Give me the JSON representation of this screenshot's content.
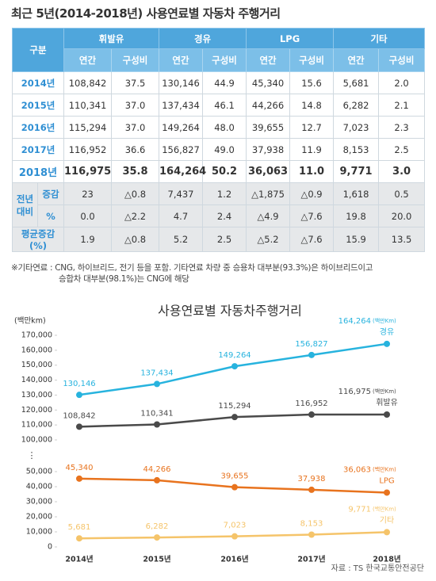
{
  "table": {
    "title": "최근 5년(2014-2018년) 사용연료별 자동차 주행거리",
    "corner": "구분",
    "groups": [
      "휘발유",
      "경유",
      "LPG",
      "기타"
    ],
    "sub": [
      "연간",
      "구성비"
    ],
    "rows": [
      {
        "label": "2014년",
        "cells": [
          "108,842",
          "37.5",
          "130,146",
          "44.9",
          "45,340",
          "15.6",
          "5,681",
          "2.0"
        ]
      },
      {
        "label": "2015년",
        "cells": [
          "110,341",
          "37.0",
          "137,434",
          "46.1",
          "44,266",
          "14.8",
          "6,282",
          "2.1"
        ]
      },
      {
        "label": "2016년",
        "cells": [
          "115,294",
          "37.0",
          "149,264",
          "48.0",
          "39,655",
          "12.7",
          "7,023",
          "2.3"
        ]
      },
      {
        "label": "2017년",
        "cells": [
          "116,952",
          "36.6",
          "156,827",
          "49.0",
          "37,938",
          "11.9",
          "8,153",
          "2.5"
        ]
      },
      {
        "label": "2018년",
        "cells": [
          "116,975",
          "35.8",
          "164,264",
          "50.2",
          "36,063",
          "11.0",
          "9,771",
          "3.0"
        ]
      }
    ],
    "compare": {
      "label": "전년 대비",
      "rows": [
        {
          "label": "증감",
          "cells": [
            "23",
            "△0.8",
            "7,437",
            "1.2",
            "△1,875",
            "△0.9",
            "1,618",
            "0.5"
          ]
        },
        {
          "label": "%",
          "cells": [
            "0.0",
            "△2.2",
            "4.7",
            "2.4",
            "△4.9",
            "△7.6",
            "19.8",
            "20.0"
          ]
        }
      ]
    },
    "average": {
      "label": "평균증감(%)",
      "cells": [
        "1.9",
        "△0.8",
        "5.2",
        "2.5",
        "△5.2",
        "△7.6",
        "15.9",
        "13.5"
      ]
    },
    "note": [
      "※기타연료 : CNG, 하이브리드, 전기 등을 포함. 기타연료 차량 중 승용차 대부분(93.3%)은 하이브리드이고",
      "승합차 대부분(98.1%)는 CNG에 해당"
    ]
  },
  "chart_data": {
    "type": "line",
    "title": "사용연료별 자동차주행거리",
    "y_label": "(백만km)",
    "unit_note": "(백만Km)",
    "source": "자료 : TS 한국교통안전공단",
    "categories": [
      "2014년",
      "2015년",
      "2016년",
      "2017년",
      "2018년"
    ],
    "ylim": [
      0,
      170000
    ],
    "axis_break": {
      "from": 50000,
      "to": 100000,
      "label": "⋮"
    },
    "yticks": [
      0,
      {
        "value": 10000,
        "label": "10,000"
      },
      {
        "value": 20000,
        "label": "20,000"
      },
      {
        "value": 30000,
        "label": "30,000"
      },
      {
        "value": 40000,
        "label": "40,000"
      },
      {
        "value": 50000,
        "label": "50,000"
      },
      {
        "value": 100000,
        "label": "100,000"
      },
      {
        "value": 110000,
        "label": "110,000"
      },
      {
        "value": 120000,
        "label": "120,000"
      },
      {
        "value": 130000,
        "label": "130,000"
      },
      {
        "value": 140000,
        "label": "140,000"
      },
      {
        "value": 150000,
        "label": "150,000"
      },
      {
        "value": 160000,
        "label": "160,000"
      },
      {
        "value": 170000,
        "label": "170,000"
      }
    ],
    "series": [
      {
        "name": "경유",
        "color": "#27b3de",
        "values": [
          130146,
          137434,
          149264,
          156827,
          164264
        ],
        "value_labels": [
          "130,146",
          "137,434",
          "149,264",
          "156,827",
          "164,264"
        ]
      },
      {
        "name": "휘발유",
        "color": "#4a4a4a",
        "values": [
          108842,
          110341,
          115294,
          116952,
          116975
        ],
        "value_labels": [
          "108,842",
          "110,341",
          "115,294",
          "116,952",
          "116,975"
        ]
      },
      {
        "name": "LPG",
        "color": "#e8731e",
        "values": [
          45340,
          44266,
          39655,
          37938,
          36063
        ],
        "value_labels": [
          "45,340",
          "44,266",
          "39,655",
          "37,938",
          "36,063"
        ]
      },
      {
        "name": "기타",
        "color": "#f5c46a",
        "values": [
          5681,
          6282,
          7023,
          8153,
          9771
        ],
        "value_labels": [
          "5,681",
          "6,282",
          "7,023",
          "8,153",
          "9,771"
        ]
      }
    ]
  }
}
